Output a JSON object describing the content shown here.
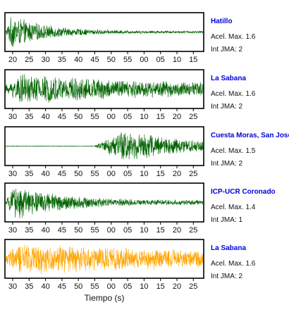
{
  "chart_data": {
    "type": "line",
    "xlabel": "Tiempo (s)",
    "accent_color": "#0000dd",
    "panels": [
      {
        "name": "Hatillo",
        "acel_label": "Acel. Max. 1.6",
        "jma_label": "Int JMA: 2",
        "color": "#006400",
        "tick_labels": [
          "20",
          "25",
          "30",
          "35",
          "40",
          "45",
          "50",
          "55",
          "00",
          "05",
          "10",
          "15"
        ],
        "envelope": {
          "onset": 0.0,
          "peak": 1.0,
          "peak_pos": 0.03,
          "decay": 0.18,
          "base": 0.07
        }
      },
      {
        "name": "La Sabana",
        "acel_label": "Acel. Max. 1.6",
        "jma_label": "Int JMA: 2",
        "color": "#006400",
        "tick_labels": [
          "30",
          "35",
          "40",
          "45",
          "50",
          "55",
          "00",
          "05",
          "10",
          "15",
          "20",
          "25"
        ],
        "envelope": {
          "onset": 0.0,
          "peak": 0.9,
          "peak_pos": 0.08,
          "decay": 0.7,
          "base": 0.25
        }
      },
      {
        "name": "Cuesta Moras, San Jose",
        "acel_label": "Acel. Max. 1.5",
        "jma_label": "Int JMA: 2",
        "color": "#006400",
        "tick_labels": [
          "30",
          "35",
          "40",
          "45",
          "50",
          "55",
          "00",
          "05",
          "10",
          "15",
          "20",
          "25"
        ],
        "envelope": {
          "onset": 0.45,
          "peak": 1.0,
          "peak_pos": 0.6,
          "decay": 0.35,
          "base": 0.04
        }
      },
      {
        "name": "ICP-UCR Coronado",
        "acel_label": "Acel. Max. 1.4",
        "jma_label": "Int JMA: 1",
        "color": "#006400",
        "tick_labels": [
          "30",
          "35",
          "40",
          "45",
          "50",
          "55",
          "00",
          "05",
          "10",
          "15",
          "20",
          "25"
        ],
        "envelope": {
          "onset": 0.0,
          "peak": 1.0,
          "peak_pos": 0.05,
          "decay": 0.25,
          "base": 0.12
        }
      },
      {
        "name": "La Sabana",
        "acel_label": "Acel. Max. 1.6",
        "jma_label": "Int JMA: 2",
        "color": "#ffa500",
        "tick_labels": [
          "30",
          "35",
          "40",
          "45",
          "50",
          "55",
          "00",
          "05",
          "10",
          "15",
          "20",
          "25"
        ],
        "envelope": {
          "onset": 0.0,
          "peak": 0.95,
          "peak_pos": 0.08,
          "decay": 0.8,
          "base": 0.35
        }
      }
    ]
  }
}
